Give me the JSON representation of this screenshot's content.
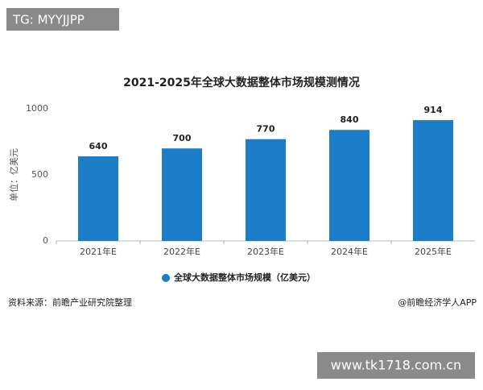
{
  "chart_data": {
    "type": "bar",
    "title": "2021-2025年全球大数据整体市场规模测情况",
    "y_label": "单位：亿美元",
    "categories": [
      "2021年E",
      "2022年E",
      "2023年E",
      "2024年E",
      "2025年E"
    ],
    "series": [
      {
        "name": "全球大数据整体市场规模（亿美元）",
        "color": "#1b7cc8",
        "values": [
          640,
          700,
          770,
          840,
          914
        ]
      }
    ],
    "ylim": [
      0,
      1000
    ],
    "yticks": [
      0,
      500,
      1000
    ],
    "grid": false,
    "legend": "bottom"
  },
  "tag": "TG: MYYJJPP",
  "source": "资料来源：前瞻产业研究院整理",
  "credit": "@前瞻经济学人APP",
  "site": "www.tk1718.com.cn"
}
